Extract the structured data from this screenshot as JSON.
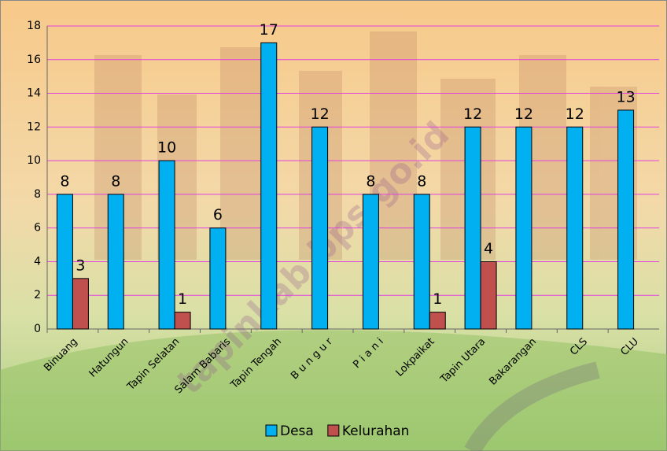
{
  "chart_data": {
    "type": "bar",
    "categories": [
      "Binuang",
      "Hatungun",
      "Tapin Selatan",
      "Salam Babaris",
      "Tapin Tengah",
      "B u n g u r",
      "P i a n i",
      "Lokpaikat",
      "Tapin Utara",
      "Bakarangan",
      "CLS",
      "CLU"
    ],
    "series": [
      {
        "name": "Desa",
        "color": "#00b0f0",
        "values": [
          8,
          8,
          10,
          6,
          17,
          12,
          8,
          8,
          12,
          12,
          12,
          13
        ]
      },
      {
        "name": "Kelurahan",
        "color": "#c0504d",
        "values": [
          3,
          null,
          1,
          null,
          null,
          null,
          null,
          1,
          4,
          null,
          null,
          null
        ]
      }
    ],
    "ylim": [
      0,
      18
    ],
    "yticks": [
      0,
      2,
      4,
      6,
      8,
      10,
      12,
      14,
      16,
      18
    ],
    "grid": true,
    "grid_color": "#e040e0",
    "legend": "bottom",
    "watermark": "tapinkab.bps.go.id"
  }
}
